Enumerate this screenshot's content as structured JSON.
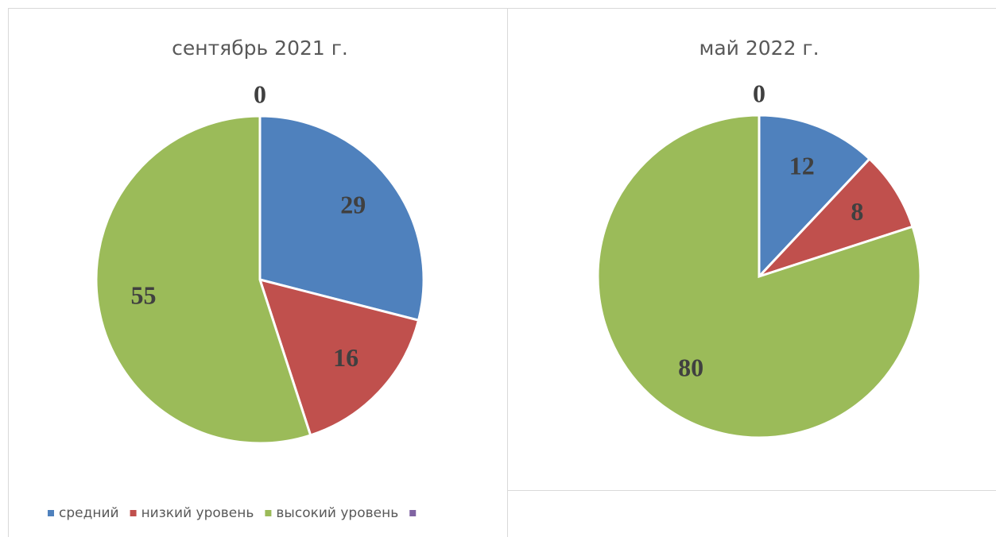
{
  "chart_data": [
    {
      "type": "pie",
      "title": "сентябрь 2021 г.",
      "categories": [
        "средний",
        "низкий уровень",
        "высокий уровень",
        null
      ],
      "values": [
        29,
        16,
        55,
        0
      ],
      "colors": [
        "#4f81bd",
        "#c0504d",
        "#9bbb59",
        "#8064a2"
      ],
      "legend": "bottom"
    },
    {
      "type": "pie",
      "title": "май 2022 г.",
      "categories": [
        "средний",
        "низкий уровень",
        "высокий уровень",
        null
      ],
      "values": [
        12,
        8,
        80,
        0
      ],
      "colors": [
        "#4f81bd",
        "#c0504d",
        "#9bbb59",
        "#8064a2"
      ]
    }
  ]
}
